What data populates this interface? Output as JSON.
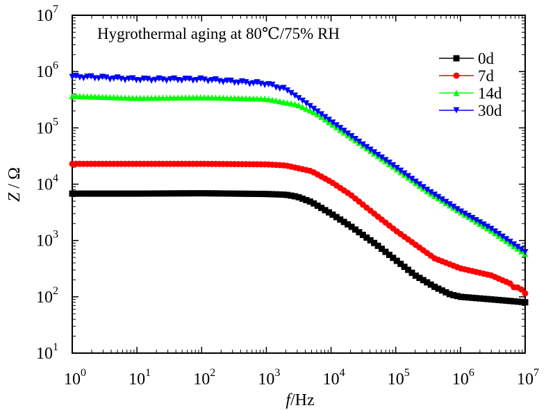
{
  "chart_data": {
    "type": "line",
    "annotation": "Hygrothermal aging at 80℃/75% RH",
    "xlabel": "f /Hz",
    "ylabel": "Z / Ω",
    "x_scale": "log",
    "y_scale": "log",
    "xlim": [
      1,
      10000000
    ],
    "ylim": [
      10,
      10000000
    ],
    "x_ticks": [
      {
        "value": 1,
        "base": "10",
        "exp": "0"
      },
      {
        "value": 10,
        "base": "10",
        "exp": "1"
      },
      {
        "value": 100,
        "base": "10",
        "exp": "2"
      },
      {
        "value": 1000,
        "base": "10",
        "exp": "3"
      },
      {
        "value": 10000,
        "base": "10",
        "exp": "4"
      },
      {
        "value": 100000,
        "base": "10",
        "exp": "5"
      },
      {
        "value": 1000000,
        "base": "10",
        "exp": "6"
      },
      {
        "value": 10000000,
        "base": "10",
        "exp": "7"
      }
    ],
    "y_ticks": [
      {
        "value": 10,
        "base": "10",
        "exp": "1"
      },
      {
        "value": 100,
        "base": "10",
        "exp": "2"
      },
      {
        "value": 1000,
        "base": "10",
        "exp": "3"
      },
      {
        "value": 10000,
        "base": "10",
        "exp": "4"
      },
      {
        "value": 100000,
        "base": "10",
        "exp": "5"
      },
      {
        "value": 1000000,
        "base": "10",
        "exp": "6"
      },
      {
        "value": 10000000,
        "base": "10",
        "exp": "7"
      }
    ],
    "grid": false,
    "legend_position": "top-right",
    "series": [
      {
        "name": "0d",
        "color": "#000000",
        "marker": "square",
        "points": [
          [
            1,
            6800
          ],
          [
            10,
            6800
          ],
          [
            100,
            6900
          ],
          [
            1000,
            6700
          ],
          [
            2000,
            6500
          ],
          [
            3000,
            6000
          ],
          [
            5000,
            4800
          ],
          [
            10000,
            3000
          ],
          [
            20000,
            1800
          ],
          [
            50000,
            850
          ],
          [
            100000,
            450
          ],
          [
            200000,
            240
          ],
          [
            400000,
            150
          ],
          [
            700000,
            110
          ],
          [
            1000000,
            100
          ],
          [
            3000000,
            90
          ],
          [
            10000000,
            80
          ]
        ]
      },
      {
        "name": "7d",
        "color": "#ff0000",
        "marker": "circle",
        "points": [
          [
            1,
            23000
          ],
          [
            10,
            23000
          ],
          [
            100,
            23000
          ],
          [
            1000,
            22500
          ],
          [
            2000,
            21500
          ],
          [
            5000,
            17000
          ],
          [
            10000,
            11000
          ],
          [
            20000,
            6500
          ],
          [
            50000,
            2800
          ],
          [
            100000,
            1500
          ],
          [
            200000,
            850
          ],
          [
            400000,
            480
          ],
          [
            1000000,
            320
          ],
          [
            3000000,
            240
          ],
          [
            6000000,
            170
          ],
          [
            7000000,
            140
          ],
          [
            8000000,
            150
          ],
          [
            10000000,
            115
          ]
        ]
      },
      {
        "name": "14d",
        "color": "#00ff00",
        "marker": "triangle-up",
        "points": [
          [
            1,
            370000
          ],
          [
            10,
            340000
          ],
          [
            100,
            350000
          ],
          [
            1000,
            330000
          ],
          [
            3000,
            260000
          ],
          [
            6000,
            180000
          ],
          [
            10000,
            120000
          ],
          [
            30000,
            50000
          ],
          [
            100000,
            19000
          ],
          [
            300000,
            7600
          ],
          [
            1000000,
            3200
          ],
          [
            3000000,
            1500
          ],
          [
            10000000,
            580
          ]
        ]
      },
      {
        "name": "30d",
        "color": "#0000ff",
        "marker": "triangle-down",
        "points": [
          [
            1,
            800000
          ],
          [
            2,
            790000
          ],
          [
            10,
            720000
          ],
          [
            100,
            720000
          ],
          [
            1000,
            600000
          ],
          [
            2000,
            480000
          ],
          [
            4000,
            280000
          ],
          [
            10000,
            130000
          ],
          [
            30000,
            52000
          ],
          [
            100000,
            20000
          ],
          [
            300000,
            8000
          ],
          [
            1000000,
            3300
          ],
          [
            3000000,
            1600
          ],
          [
            10000000,
            620
          ]
        ]
      }
    ]
  }
}
